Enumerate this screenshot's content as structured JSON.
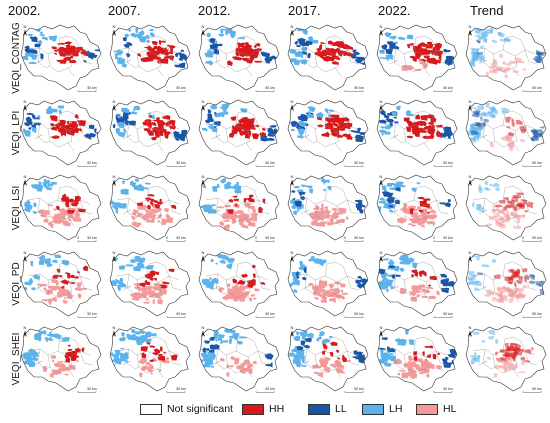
{
  "columns": [
    "2002.",
    "2007.",
    "2012.",
    "2017.",
    "2022.",
    "Trend"
  ],
  "map_labels": {
    "north": "N",
    "scale": "50 km"
  },
  "rows": [
    {
      "label": "VEQI_CONTAG",
      "cells": [
        [
          "#d7191c",
          "#5cb3ec",
          "#1a56a8"
        ],
        [
          "#d7191c",
          "#5cb3ec",
          "#1a56a8"
        ],
        [
          "#d7191c",
          "#5cb3ec",
          "#1a56a8"
        ],
        [
          "#d7191c",
          "#1a56a8",
          "#5cb3ec"
        ],
        [
          "#d7191c",
          "#1a56a8",
          "#5cb3ec",
          "#f59a9a"
        ],
        [
          "#5cb3ec",
          "#f59a9a",
          "#1a56a8"
        ]
      ]
    },
    {
      "label": "VEQI_LPI",
      "cells": [
        [
          "#d7191c",
          "#1a56a8",
          "#5cb3ec"
        ],
        [
          "#d7191c",
          "#1a56a8",
          "#5cb3ec"
        ],
        [
          "#d7191c",
          "#1a56a8",
          "#5cb3ec"
        ],
        [
          "#d7191c",
          "#1a56a8",
          "#5cb3ec"
        ],
        [
          "#d7191c",
          "#1a56a8",
          "#5cb3ec"
        ],
        [
          "#5cb3ec",
          "#1a56a8",
          "#f59a9a",
          "#d7191c"
        ]
      ]
    },
    {
      "label": "VEQI_LSI",
      "scale_zero": "0",
      "cells": [
        [
          "#f59a9a",
          "#5cb3ec",
          "#d7191c"
        ],
        [
          "#f59a9a",
          "#5cb3ec",
          "#d7191c"
        ],
        [
          "#f59a9a",
          "#5cb3ec",
          "#d7191c"
        ],
        [
          "#f59a9a",
          "#5cb3ec",
          "#1a56a8"
        ],
        [
          "#f59a9a",
          "#5cb3ec",
          "#1a56a8",
          "#d7191c"
        ],
        [
          "#f59a9a",
          "#d7191c",
          "#5cb3ec"
        ]
      ]
    },
    {
      "label": "VEQI_PD",
      "cells": [
        [
          "#f59a9a",
          "#5cb3ec",
          "#d7191c"
        ],
        [
          "#f59a9a",
          "#5cb3ec",
          "#d7191c"
        ],
        [
          "#f59a9a",
          "#5cb3ec",
          "#d7191c"
        ],
        [
          "#f59a9a",
          "#5cb3ec",
          "#1a56a8"
        ],
        [
          "#5cb3ec",
          "#f59a9a",
          "#1a56a8",
          "#d7191c"
        ],
        [
          "#f59a9a",
          "#d7191c",
          "#5cb3ec",
          "#1a56a8"
        ]
      ]
    },
    {
      "label": "VEQI_SHEI",
      "cells": [
        [
          "#5cb3ec",
          "#f59a9a",
          "#d7191c"
        ],
        [
          "#5cb3ec",
          "#f59a9a",
          "#d7191c"
        ],
        [
          "#5cb3ec",
          "#f59a9a",
          "#1a56a8"
        ],
        [
          "#5cb3ec",
          "#f59a9a",
          "#1a56a8",
          "#d7191c"
        ],
        [
          "#f59a9a",
          "#5cb3ec",
          "#1a56a8",
          "#d7191c"
        ],
        [
          "#d7191c",
          "#f59a9a",
          "#5cb3ec"
        ]
      ]
    }
  ],
  "legend": [
    {
      "label": "Not significant",
      "color": "#ffffff"
    },
    {
      "label": "HH",
      "color": "#d7191c"
    },
    {
      "label": "LL",
      "color": "#1a56a8"
    },
    {
      "label": "LH",
      "color": "#5cb3ec"
    },
    {
      "label": "HL",
      "color": "#f59a9a"
    }
  ]
}
